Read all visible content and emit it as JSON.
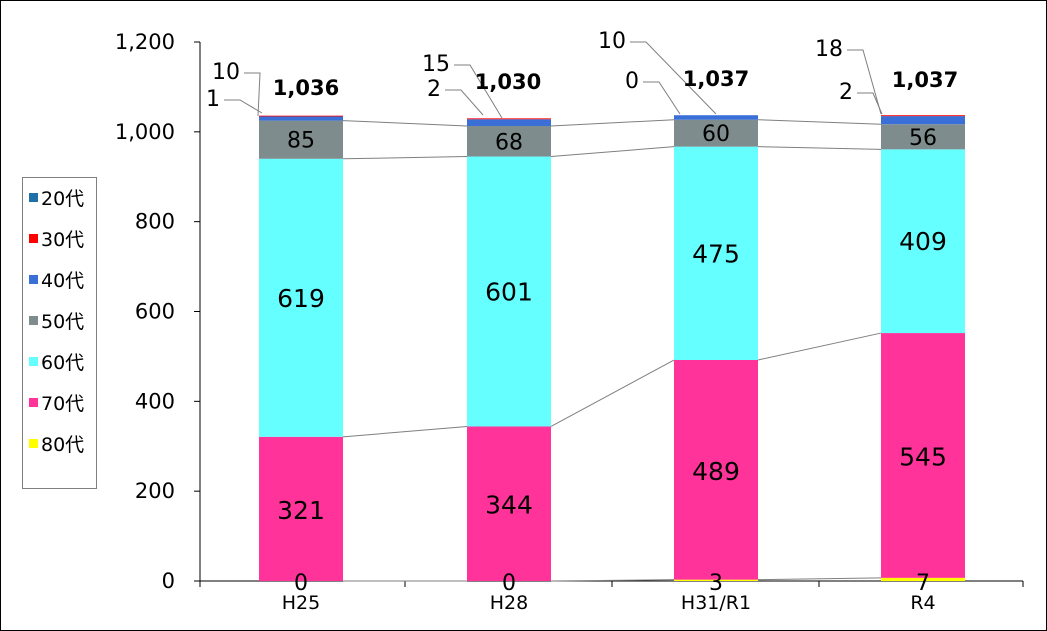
{
  "chart_data": {
    "type": "bar",
    "stacked": true,
    "categories": [
      "H25",
      "H28",
      "H31/R1",
      "R4"
    ],
    "ylim": [
      0,
      1200
    ],
    "yticks": [
      0,
      200,
      400,
      600,
      800,
      1000,
      1200
    ],
    "ytick_labels": [
      "0",
      "200",
      "400",
      "600",
      "800",
      "1,000",
      "1,200"
    ],
    "legend_position": "left",
    "series": [
      {
        "name": "80代",
        "color": "#ffff00",
        "values": [
          0,
          0,
          3,
          7
        ],
        "labels": [
          "0",
          "0",
          "3",
          "7"
        ]
      },
      {
        "name": "70代",
        "color": "#ff3399",
        "values": [
          321,
          344,
          489,
          545
        ],
        "labels": [
          "321",
          "344",
          "489",
          "545"
        ]
      },
      {
        "name": "60代",
        "color": "#66ffff",
        "values": [
          619,
          601,
          475,
          409
        ],
        "labels": [
          "619",
          "601",
          "475",
          "409"
        ]
      },
      {
        "name": "50代",
        "color": "#7f8c8d",
        "values": [
          85,
          68,
          60,
          56
        ],
        "labels": [
          "85",
          "68",
          "60",
          "56"
        ]
      },
      {
        "name": "40代",
        "color": "#3a6fd8",
        "values": [
          10,
          15,
          10,
          18
        ],
        "labels": [
          "10",
          "15",
          "10",
          "18"
        ]
      },
      {
        "name": "30代",
        "color": "#ff0000",
        "values": [
          1,
          2,
          0,
          2
        ],
        "labels": [
          "1",
          "2",
          "0",
          "2"
        ]
      },
      {
        "name": "20代",
        "color": "#1f6fa8",
        "values": [
          0,
          0,
          0,
          0
        ],
        "labels": []
      }
    ],
    "totals": [
      "1,036",
      "1,030",
      "1,037",
      "1,037"
    ]
  },
  "legend": [
    "20代",
    "30代",
    "40代",
    "50代",
    "60代",
    "70代",
    "80代"
  ]
}
